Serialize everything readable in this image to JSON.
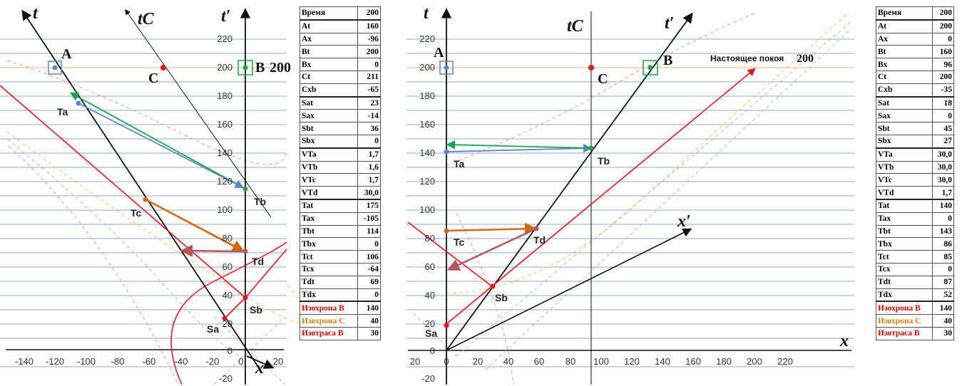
{
  "colors": {
    "grid": "#8fa8c8",
    "now_line": "#f3c9a0",
    "black": "#111111",
    "red": "#e8141b",
    "green": "#1aa44e",
    "blue": "#5b86c5",
    "orange": "#d3690f",
    "brown": "#b8555b",
    "pink_dash": "#e89aa0",
    "yellow_dash": "#e8c84a",
    "gray_dash": "#b0b8c8"
  },
  "left": {
    "axis_labels": {
      "t": "t",
      "tprime": "t′",
      "tc": "tC",
      "x": "x"
    },
    "point_labels": {
      "A": "A",
      "B": "B",
      "B_value": "200",
      "C": "C",
      "Ta": "Ta",
      "Tb": "Tb",
      "Tc": "Tc",
      "Td": "Td",
      "Sa": "Sa",
      "Sb": "Sb"
    },
    "x_ticks": [
      "-140",
      "-120",
      "-100",
      "-80",
      "-60",
      "-40",
      "-20",
      "0",
      "20"
    ],
    "y_ticks": [
      "-20",
      "0",
      "20",
      "40",
      "60",
      "80",
      "100",
      "120",
      "140",
      "160",
      "180",
      "200",
      "220"
    ],
    "table": [
      [
        "Время",
        "200"
      ],
      [
        "At",
        "160"
      ],
      [
        "Ax",
        "-96"
      ],
      [
        "Bt",
        "200"
      ],
      [
        "Bx",
        "0"
      ],
      [
        "Ct",
        "211"
      ],
      [
        "Cxb",
        "-65"
      ],
      [
        "Sat",
        "23"
      ],
      [
        "Sax",
        "-14"
      ],
      [
        "Sbt",
        "36"
      ],
      [
        "Sbx",
        "0"
      ],
      [
        "VTa",
        "1,7"
      ],
      [
        "VTb",
        "1,6"
      ],
      [
        "VTc",
        "1,7"
      ],
      [
        "VTd",
        "30,0"
      ],
      [
        "Tat",
        "175"
      ],
      [
        "Tax",
        "-105"
      ],
      [
        "Tbt",
        "114"
      ],
      [
        "Tbx",
        "0"
      ],
      [
        "Tct",
        "106"
      ],
      [
        "Tcx",
        "-64"
      ],
      [
        "Tdt",
        "69"
      ],
      [
        "Tdx",
        "0"
      ],
      [
        "Изохрона B",
        "140"
      ],
      [
        "Изохрона C",
        "40"
      ],
      [
        "Изотраса B",
        "30"
      ]
    ]
  },
  "right": {
    "axis_labels": {
      "t": "t",
      "tprime": "t′",
      "tc": "tC",
      "x": "x",
      "xprime": "x′"
    },
    "point_labels": {
      "A": "A",
      "B": "B",
      "C": "C",
      "Ta": "Ta",
      "Tb": "Tb",
      "Tc": "Tc",
      "Td": "Td",
      "Sa": "Sa",
      "Sb": "Sb"
    },
    "annotation": "Настоящее покоя",
    "annotation_value": "200",
    "x_ticks": [
      "20",
      "0",
      "20",
      "40",
      "60",
      "80",
      "100",
      "120",
      "140",
      "160",
      "180",
      "200",
      "220"
    ],
    "y_ticks": [
      "-20",
      "0",
      "20",
      "40",
      "60",
      "80",
      "100",
      "120",
      "140",
      "160",
      "180",
      "200",
      "220"
    ],
    "table": [
      [
        "Время",
        "200"
      ],
      [
        "At",
        "200"
      ],
      [
        "Ax",
        "0"
      ],
      [
        "Bt",
        "160"
      ],
      [
        "Bx",
        "96"
      ],
      [
        "Ct",
        "200"
      ],
      [
        "Cxb",
        "-35"
      ],
      [
        "Sat",
        "18"
      ],
      [
        "Sax",
        "0"
      ],
      [
        "Sbt",
        "45"
      ],
      [
        "Sbx",
        "27"
      ],
      [
        "VTa",
        "30,0"
      ],
      [
        "VTb",
        "30,0"
      ],
      [
        "VTc",
        "30,0"
      ],
      [
        "VTd",
        "1,7"
      ],
      [
        "Tat",
        "140"
      ],
      [
        "Tax",
        "0"
      ],
      [
        "Tbt",
        "143"
      ],
      [
        "Tbx",
        "86"
      ],
      [
        "Tct",
        "85"
      ],
      [
        "Tcx",
        "0"
      ],
      [
        "Tdt",
        "87"
      ],
      [
        "Tdx",
        "52"
      ],
      [
        "Изохрона B",
        "140"
      ],
      [
        "Изохрона C",
        "40"
      ],
      [
        "Изотраса B",
        "30"
      ]
    ]
  }
}
